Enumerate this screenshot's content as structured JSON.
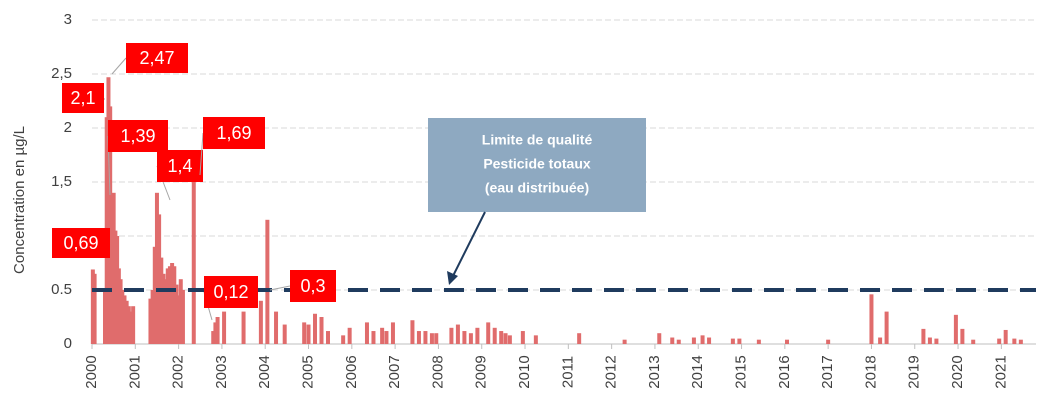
{
  "chart_data": {
    "type": "bar",
    "ylabel": "Concentration en µg/L",
    "xlim": [
      2000,
      2021.8
    ],
    "xticks": [
      2000,
      2001,
      2002,
      2003,
      2004,
      2005,
      2006,
      2007,
      2008,
      2009,
      2010,
      2011,
      2012,
      2013,
      2014,
      2015,
      2016,
      2017,
      2018,
      2019,
      2020,
      2021
    ],
    "ylim": [
      0,
      3
    ],
    "yticks": [
      0,
      0.5,
      1,
      {
        "value": 1.5,
        "label": "1,5"
      },
      2,
      {
        "value": 2.5,
        "label": "2,5"
      },
      3
    ],
    "grid": true,
    "color": "#e06c6c",
    "x": [
      2000.02,
      2000.06,
      2000.3,
      2000.34,
      2000.38,
      2000.42,
      2000.46,
      2000.5,
      2000.54,
      2000.58,
      2000.62,
      2000.66,
      2000.7,
      2000.75,
      2000.8,
      2000.85,
      2000.9,
      2000.95,
      2001.35,
      2001.4,
      2001.45,
      2001.5,
      2001.55,
      2001.6,
      2001.65,
      2001.7,
      2001.75,
      2001.8,
      2001.85,
      2001.9,
      2001.95,
      2002.0,
      2002.05,
      2002.1,
      2002.35,
      2002.8,
      2002.85,
      2002.9,
      2003.05,
      2003.5,
      2003.9,
      2004.05,
      2004.25,
      2004.45,
      2004.9,
      2005.0,
      2005.15,
      2005.3,
      2005.45,
      2005.8,
      2005.95,
      2006.35,
      2006.5,
      2006.7,
      2006.8,
      2006.95,
      2007.4,
      2007.55,
      2007.7,
      2007.85,
      2007.95,
      2008.3,
      2008.45,
      2008.6,
      2008.75,
      2008.9,
      2009.15,
      2009.3,
      2009.45,
      2009.55,
      2009.65,
      2009.95,
      2010.25,
      2011.25,
      2012.3,
      2013.1,
      2013.4,
      2013.55,
      2013.9,
      2014.1,
      2014.25,
      2014.8,
      2014.95,
      2015.4,
      2016.05,
      2017.0,
      2018.0,
      2018.2,
      2018.35,
      2019.2,
      2019.35,
      2019.5,
      2019.95,
      2020.1,
      2020.35,
      2020.95,
      2021.1,
      2021.3,
      2021.45
    ],
    "values": [
      0.69,
      0.65,
      0.5,
      2.1,
      2.47,
      2.2,
      1.39,
      1.4,
      1.05,
      1.0,
      0.7,
      0.6,
      0.5,
      0.45,
      0.4,
      0.35,
      0.3,
      0.35,
      0.42,
      0.5,
      0.9,
      1.4,
      1.2,
      0.8,
      0.65,
      0.6,
      0.7,
      0.72,
      0.75,
      0.72,
      0.55,
      0.45,
      0.6,
      0.5,
      1.69,
      0.12,
      0.2,
      0.25,
      0.3,
      0.3,
      0.4,
      1.15,
      0.3,
      0.18,
      0.2,
      0.18,
      0.28,
      0.25,
      0.12,
      0.08,
      0.15,
      0.2,
      0.12,
      0.15,
      0.12,
      0.2,
      0.22,
      0.12,
      0.12,
      0.1,
      0.1,
      0.15,
      0.18,
      0.12,
      0.1,
      0.15,
      0.2,
      0.15,
      0.12,
      0.1,
      0.08,
      0.12,
      0.08,
      0.1,
      0.04,
      0.1,
      0.06,
      0.04,
      0.06,
      0.08,
      0.06,
      0.05,
      0.05,
      0.04,
      0.04,
      0.04,
      0.46,
      0.06,
      0.3,
      0.14,
      0.06,
      0.05,
      0.27,
      0.14,
      0.04,
      0.05,
      0.13,
      0.05,
      0.04
    ],
    "limit": {
      "value": 0.5,
      "color": "#1f3b5e",
      "label": [
        "Limite de qualité",
        "Pesticide totaux",
        "(eau distribuée)"
      ]
    },
    "annotations": [
      "2,47",
      "2,1",
      "1,39",
      "1,4",
      "1,69",
      "0,69",
      "0,12",
      "0,3"
    ]
  }
}
